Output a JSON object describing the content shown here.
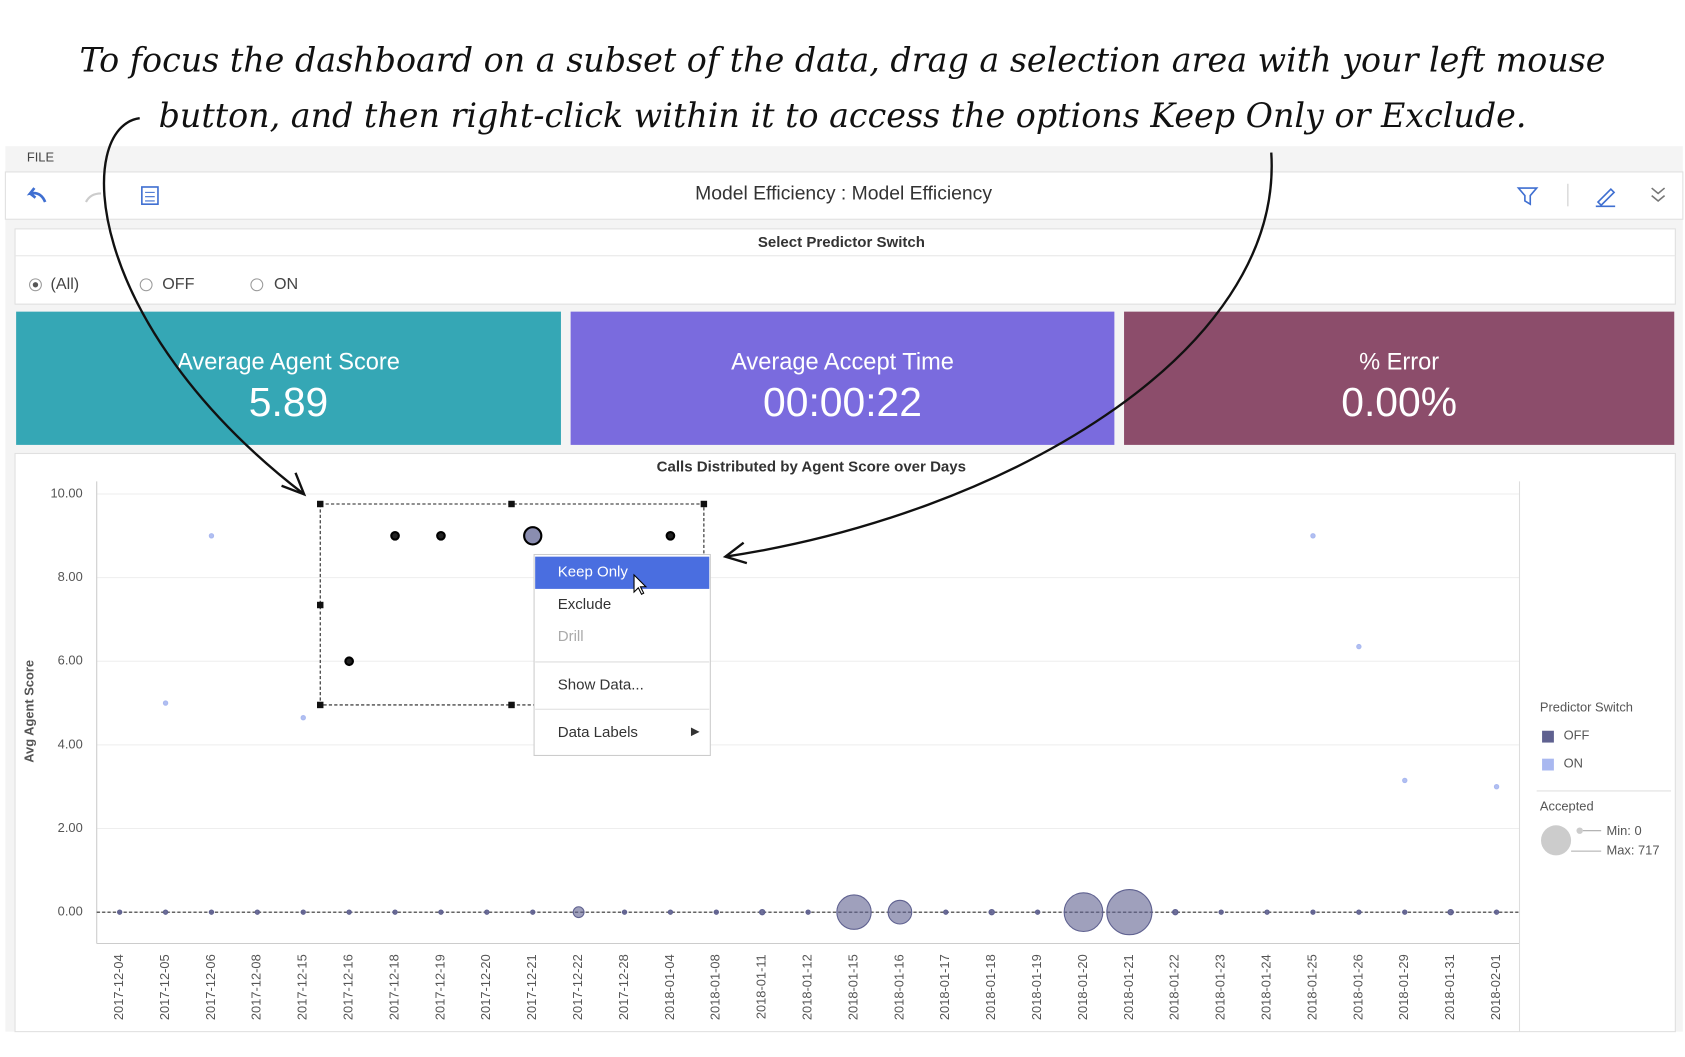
{
  "annotation": {
    "lines": [
      "To focus the dashboard on a subset of the data, drag a selection area with your left mouse",
      "button, and then right-click within it to access the options Keep Only or Exclude."
    ]
  },
  "menubar": {
    "file": "FILE"
  },
  "toolbar": {
    "title": "Model Efficiency : Model Efficiency"
  },
  "filter": {
    "title": "Select Predictor Switch",
    "options": [
      "(All)",
      "OFF",
      "ON"
    ]
  },
  "kpis": [
    {
      "title": "Average Agent Score",
      "value": "5.89",
      "color": "#35a7b5"
    },
    {
      "title": "Average Accept Time",
      "value": "00:00:22",
      "color": "#7a6bde"
    },
    {
      "title": "% Error",
      "value": "0.00%",
      "color": "#8c4d6b"
    }
  ],
  "context_menu": {
    "items": [
      "Keep Only",
      "Exclude",
      "Drill",
      "Show Data...",
      "Data Labels"
    ]
  },
  "chart_data": {
    "type": "scatter",
    "title": "Calls Distributed by Agent Score over Days",
    "y_label": "Avg Agent Score",
    "categories": [
      "2017-12-04",
      "2017-12-05",
      "2017-12-06",
      "2017-12-08",
      "2017-12-15",
      "2017-12-16",
      "2017-12-18",
      "2017-12-19",
      "2017-12-20",
      "2017-12-21",
      "2017-12-22",
      "2017-12-28",
      "2018-01-04",
      "2018-01-08",
      "2018-01-11",
      "2018-01-12",
      "2018-01-15",
      "2018-01-16",
      "2018-01-17",
      "2018-01-18",
      "2018-01-19",
      "2018-01-20",
      "2018-01-21",
      "2018-01-22",
      "2018-01-23",
      "2018-01-24",
      "2018-01-25",
      "2018-01-26",
      "2018-01-29",
      "2018-01-31",
      "2018-02-01"
    ],
    "ylim": [
      -0.75,
      10.3
    ],
    "yticks": [
      {
        "value": 0,
        "label": "0.00"
      },
      {
        "value": 2,
        "label": "2.00"
      },
      {
        "value": 4,
        "label": "4.00"
      },
      {
        "value": 6,
        "label": "6.00"
      },
      {
        "value": 8,
        "label": "8.00"
      },
      {
        "value": 10,
        "label": "10.00"
      }
    ],
    "grid": true,
    "legend_title": "Predictor Switch",
    "series": [
      {
        "name": "OFF",
        "color": "#5f6190",
        "values": [
          0,
          0,
          0,
          0,
          0,
          0,
          0,
          0,
          0,
          0,
          0,
          0,
          0,
          0,
          0,
          0,
          0,
          0,
          0,
          0,
          0,
          0,
          0,
          0,
          0,
          0,
          0,
          0,
          0,
          0,
          0
        ],
        "sizes": [
          5,
          5,
          5,
          5,
          5,
          5,
          5,
          5,
          5,
          5,
          41,
          5,
          5,
          5,
          10,
          5,
          416,
          197,
          5,
          10,
          5,
          527,
          717,
          10,
          5,
          5,
          5,
          5,
          5,
          10,
          5
        ],
        "selected": [
          false,
          false,
          false,
          false,
          false,
          false,
          false,
          false,
          false,
          false,
          false,
          false,
          false,
          false,
          false,
          false,
          false,
          false,
          false,
          false,
          false,
          false,
          false,
          false,
          false,
          false,
          false,
          false,
          false,
          false,
          false
        ]
      },
      {
        "name": "ON",
        "color": "#a9b8f0",
        "values": [
          null,
          5,
          9,
          null,
          4.65,
          6,
          9,
          9,
          null,
          9,
          null,
          null,
          9,
          null,
          null,
          null,
          null,
          null,
          null,
          null,
          null,
          null,
          null,
          null,
          null,
          null,
          9,
          6.35,
          3.15,
          null,
          3
        ],
        "sizes": [
          null,
          5,
          5,
          null,
          5,
          5,
          5,
          5,
          null,
          104,
          null,
          null,
          5,
          null,
          null,
          null,
          null,
          null,
          null,
          null,
          null,
          null,
          null,
          null,
          null,
          null,
          5,
          5,
          5,
          null,
          5
        ],
        "selected": [
          false,
          false,
          false,
          false,
          false,
          true,
          true,
          true,
          false,
          true,
          false,
          false,
          true,
          false,
          false,
          false,
          false,
          false,
          false,
          false,
          false,
          false,
          false,
          false,
          false,
          false,
          false,
          false,
          false,
          false,
          false
        ]
      }
    ],
    "size_legend": {
      "title": "Accepted",
      "min": {
        "value": 0,
        "label": "Min: 0"
      },
      "max": {
        "value": 717,
        "label": "Max: 717"
      }
    }
  }
}
